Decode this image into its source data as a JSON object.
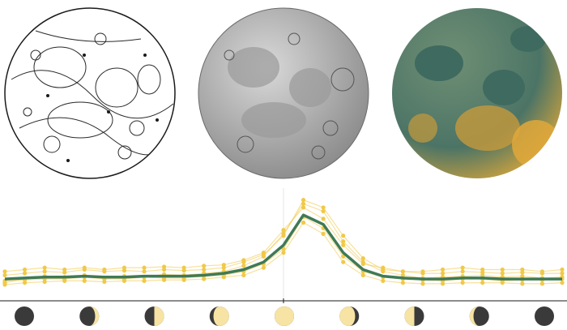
{
  "moon_views": [
    {
      "name": "line-drawing",
      "style": "contour-linework",
      "colors": {
        "fill": "#ffffff",
        "stroke": "#1a1a1a"
      }
    },
    {
      "name": "grayscale-relief",
      "style": "shaded-relief",
      "colors": {
        "fill": "#bdbdbd",
        "stroke": "#5a5a5a"
      }
    },
    {
      "name": "color-elevation",
      "style": "hypsometric-tint",
      "colors": {
        "low": "#3f6a5f",
        "mid": "#6f8f74",
        "high": "#d9a63a"
      }
    }
  ],
  "colors": {
    "accent_line": "#3f7a55",
    "series_gold": "#f0c94a",
    "phase_dark": "#3a3a3a",
    "phase_light": "#f7e3a3"
  },
  "chart_data": {
    "type": "line",
    "x": [
      0,
      1,
      2,
      3,
      4,
      5,
      6,
      7,
      8,
      9,
      10,
      11,
      12,
      13,
      14,
      15,
      16,
      17,
      18,
      19,
      20,
      21,
      22,
      23,
      24,
      25,
      26,
      27,
      28
    ],
    "ylim": [
      0,
      100
    ],
    "series": [
      {
        "role": "mean",
        "values": [
          12,
          13,
          14,
          14,
          15,
          14,
          14,
          15,
          15,
          15,
          16,
          18,
          22,
          30,
          48,
          80,
          70,
          40,
          22,
          15,
          13,
          12,
          12,
          13,
          13,
          12,
          12,
          12,
          12
        ]
      },
      {
        "role": "sample",
        "values": [
          8,
          12,
          15,
          14,
          16,
          13,
          15,
          14,
          17,
          16,
          18,
          20,
          26,
          36,
          60,
          92,
          84,
          52,
          30,
          20,
          16,
          13,
          14,
          15,
          16,
          14,
          15,
          13,
          14
        ]
      },
      {
        "role": "sample",
        "values": [
          16,
          18,
          20,
          19,
          22,
          20,
          21,
          20,
          22,
          21,
          22,
          24,
          30,
          38,
          58,
          96,
          88,
          58,
          34,
          22,
          20,
          18,
          18,
          20,
          19,
          18,
          19,
          18,
          18
        ]
      },
      {
        "role": "sample",
        "values": [
          6,
          8,
          9,
          10,
          10,
          9,
          10,
          10,
          11,
          11,
          12,
          14,
          16,
          24,
          40,
          72,
          60,
          30,
          16,
          10,
          8,
          7,
          7,
          8,
          8,
          8,
          7,
          7,
          8
        ]
      },
      {
        "role": "sample",
        "values": [
          20,
          22,
          24,
          22,
          24,
          22,
          24,
          24,
          25,
          24,
          26,
          27,
          32,
          40,
          64,
          88,
          76,
          48,
          28,
          24,
          20,
          20,
          22,
          24,
          22,
          22,
          22,
          20,
          22
        ]
      },
      {
        "role": "sample",
        "values": [
          10,
          11,
          12,
          12,
          14,
          12,
          12,
          14,
          13,
          13,
          15,
          16,
          20,
          28,
          44,
          78,
          66,
          36,
          20,
          14,
          12,
          11,
          10,
          12,
          12,
          10,
          11,
          11,
          12
        ]
      }
    ]
  },
  "phase_strip": {
    "phases": [
      {
        "name": "new-moon",
        "lit": 0.0,
        "waxing": true
      },
      {
        "name": "waxing-crescent",
        "lit": 0.2,
        "waxing": true
      },
      {
        "name": "first-quarter",
        "lit": 0.5,
        "waxing": true
      },
      {
        "name": "waxing-gibbous",
        "lit": 0.8,
        "waxing": true
      },
      {
        "name": "full-moon",
        "lit": 1.0,
        "waxing": true
      },
      {
        "name": "waning-gibbous",
        "lit": 0.8,
        "waxing": false
      },
      {
        "name": "last-quarter",
        "lit": 0.5,
        "waxing": false
      },
      {
        "name": "waning-crescent",
        "lit": 0.2,
        "waxing": false
      },
      {
        "name": "new-moon-end",
        "lit": 0.0,
        "waxing": false
      }
    ]
  }
}
